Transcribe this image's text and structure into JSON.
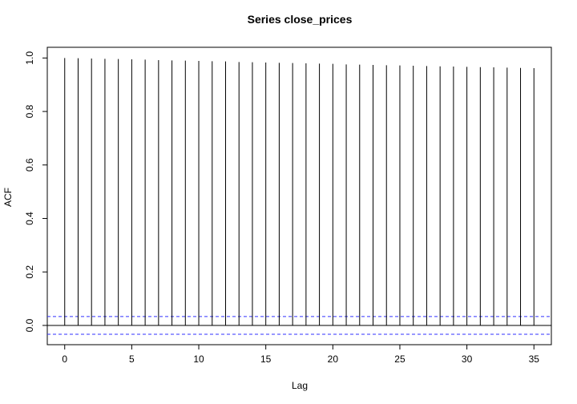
{
  "chart_data": {
    "type": "bar",
    "subtype": "acf-lag-plot",
    "title": "Series  close_prices",
    "xlabel": "Lag",
    "ylabel": "ACF",
    "x": [
      0,
      1,
      2,
      3,
      4,
      5,
      6,
      7,
      8,
      9,
      10,
      11,
      12,
      13,
      14,
      15,
      16,
      17,
      18,
      19,
      20,
      21,
      22,
      23,
      24,
      25,
      26,
      27,
      28,
      29,
      30,
      31,
      32,
      33,
      34,
      35
    ],
    "values": [
      1.0,
      0.999,
      0.998,
      0.997,
      0.996,
      0.995,
      0.994,
      0.992,
      0.991,
      0.99,
      0.989,
      0.988,
      0.987,
      0.985,
      0.984,
      0.983,
      0.982,
      0.981,
      0.98,
      0.979,
      0.978,
      0.976,
      0.975,
      0.974,
      0.973,
      0.972,
      0.971,
      0.97,
      0.969,
      0.968,
      0.967,
      0.966,
      0.965,
      0.964,
      0.963,
      0.962
    ],
    "confidence_bound": 0.0331,
    "xlim": [
      -1.3,
      36.3
    ],
    "ylim": [
      -0.072,
      1.04
    ],
    "x_ticks": [
      0,
      5,
      10,
      15,
      20,
      25,
      30,
      35
    ],
    "y_ticks": [
      0.0,
      0.2,
      0.4,
      0.6,
      0.8,
      1.0
    ],
    "y_tick_labels": [
      "0.0",
      "0.2",
      "0.4",
      "0.6",
      "0.8",
      "1.0"
    ],
    "grid": false,
    "legend": "none",
    "colors": {
      "bars": "#000000",
      "zero_line": "#000000",
      "confidence_lines": "#3030ff"
    }
  }
}
